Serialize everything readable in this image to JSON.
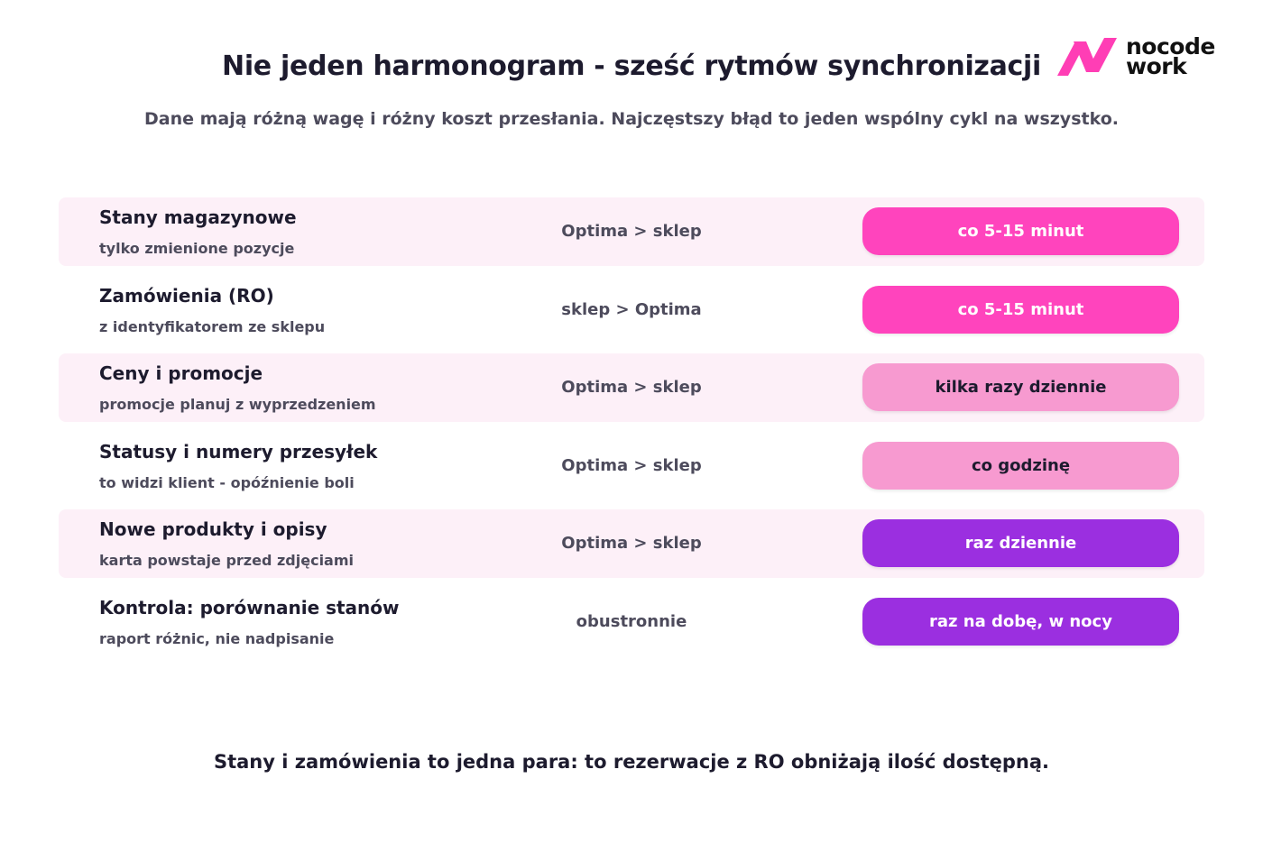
{
  "brand": {
    "line1": "nocode",
    "line2": "work",
    "color": "#ff3eb5",
    "icon": "n-logo-icon"
  },
  "title": "Nie jeden harmonogram - sześć rytmów synchronizacji",
  "subtitle": "Dane mają różną wagę i różny koszt przesłania. Najczęstszy błąd to jeden wspólny cykl na wszystko.",
  "rows": [
    {
      "name": "Stany magazynowe",
      "note": "tylko zmienione pozycje",
      "direction": "Optima > sklep",
      "frequency": "co 5-15 minut",
      "pill_bg": "#ff44bd",
      "pill_fg": "#ffffff",
      "shaded": true
    },
    {
      "name": "Zamówienia (RO)",
      "note": "z identyfikatorem ze sklepu",
      "direction": "sklep > Optima",
      "frequency": "co 5-15 minut",
      "pill_bg": "#ff44bd",
      "pill_fg": "#ffffff",
      "shaded": false
    },
    {
      "name": "Ceny i promocje",
      "note": "promocje planuj z wyprzedzeniem",
      "direction": "Optima > sklep",
      "frequency": "kilka razy dziennie",
      "pill_bg": "#f79ad0",
      "pill_fg": "#1d1b2e",
      "shaded": true
    },
    {
      "name": "Statusy i numery przesyłek",
      "note": "to widzi klient - opóźnienie boli",
      "direction": "Optima > sklep",
      "frequency": "co godzinę",
      "pill_bg": "#f79ad0",
      "pill_fg": "#1d1b2e",
      "shaded": false
    },
    {
      "name": "Nowe produkty i opisy",
      "note": "karta powstaje przed zdjęciami",
      "direction": "Optima > sklep",
      "frequency": "raz dziennie",
      "pill_bg": "#9b2fe0",
      "pill_fg": "#ffffff",
      "shaded": true
    },
    {
      "name": "Kontrola: porównanie stanów",
      "note": "raport różnic, nie nadpisanie",
      "direction": "obustronnie",
      "frequency": "raz na dobę, w nocy",
      "pill_bg": "#9b2fe0",
      "pill_fg": "#ffffff",
      "shaded": false
    }
  ],
  "footer": "Stany i zamówienia to jedna para: to rezerwacje z RO obniżają ilość dostępną."
}
